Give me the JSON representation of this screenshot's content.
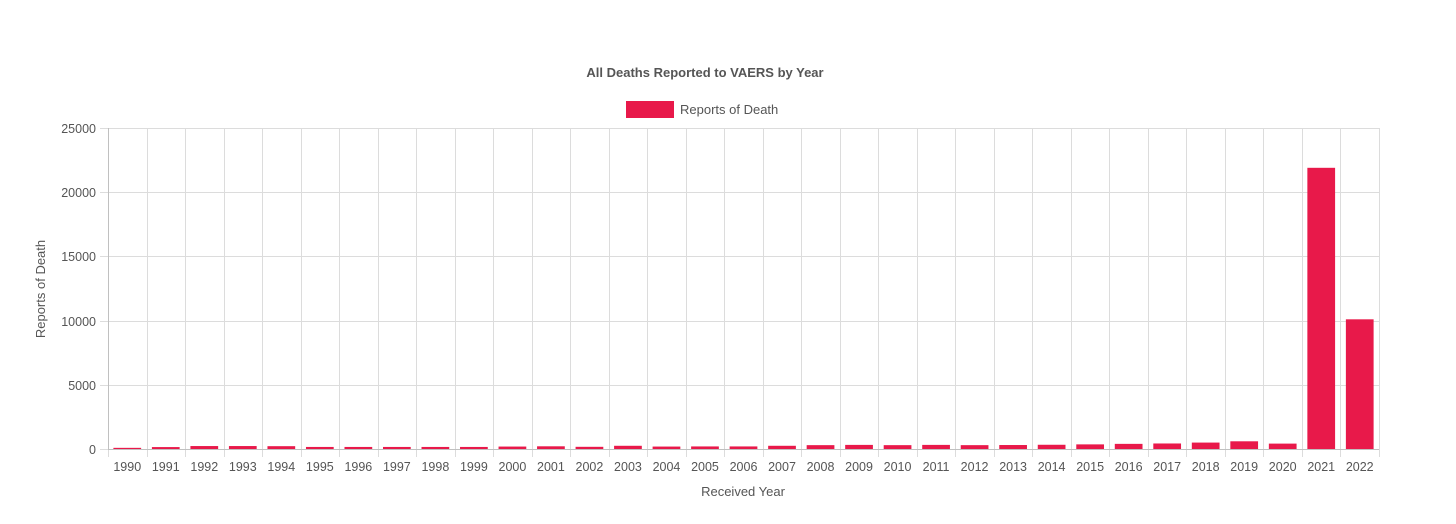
{
  "chart_data": {
    "type": "bar",
    "title": "All Deaths Reported to VAERS by Year",
    "xlabel": "Received Year",
    "ylabel": "Reports of Death",
    "ylim": [
      0,
      25000
    ],
    "yticks": [
      0,
      5000,
      10000,
      15000,
      20000,
      25000
    ],
    "grid": true,
    "legend_position": "top",
    "categories": [
      "1990",
      "1991",
      "1992",
      "1993",
      "1994",
      "1995",
      "1996",
      "1997",
      "1998",
      "1999",
      "2000",
      "2001",
      "2002",
      "2003",
      "2004",
      "2005",
      "2006",
      "2007",
      "2008",
      "2009",
      "2010",
      "2011",
      "2012",
      "2013",
      "2014",
      "2015",
      "2016",
      "2017",
      "2018",
      "2019",
      "2020",
      "2021",
      "2022"
    ],
    "series": [
      {
        "name": "Reports of Death",
        "color": "#e8194a",
        "values": [
          90,
          150,
          230,
          230,
          220,
          160,
          160,
          160,
          160,
          160,
          190,
          210,
          170,
          250,
          190,
          200,
          200,
          250,
          300,
          320,
          300,
          320,
          300,
          310,
          330,
          360,
          400,
          430,
          500,
          600,
          420,
          21900,
          10100
        ]
      }
    ]
  }
}
